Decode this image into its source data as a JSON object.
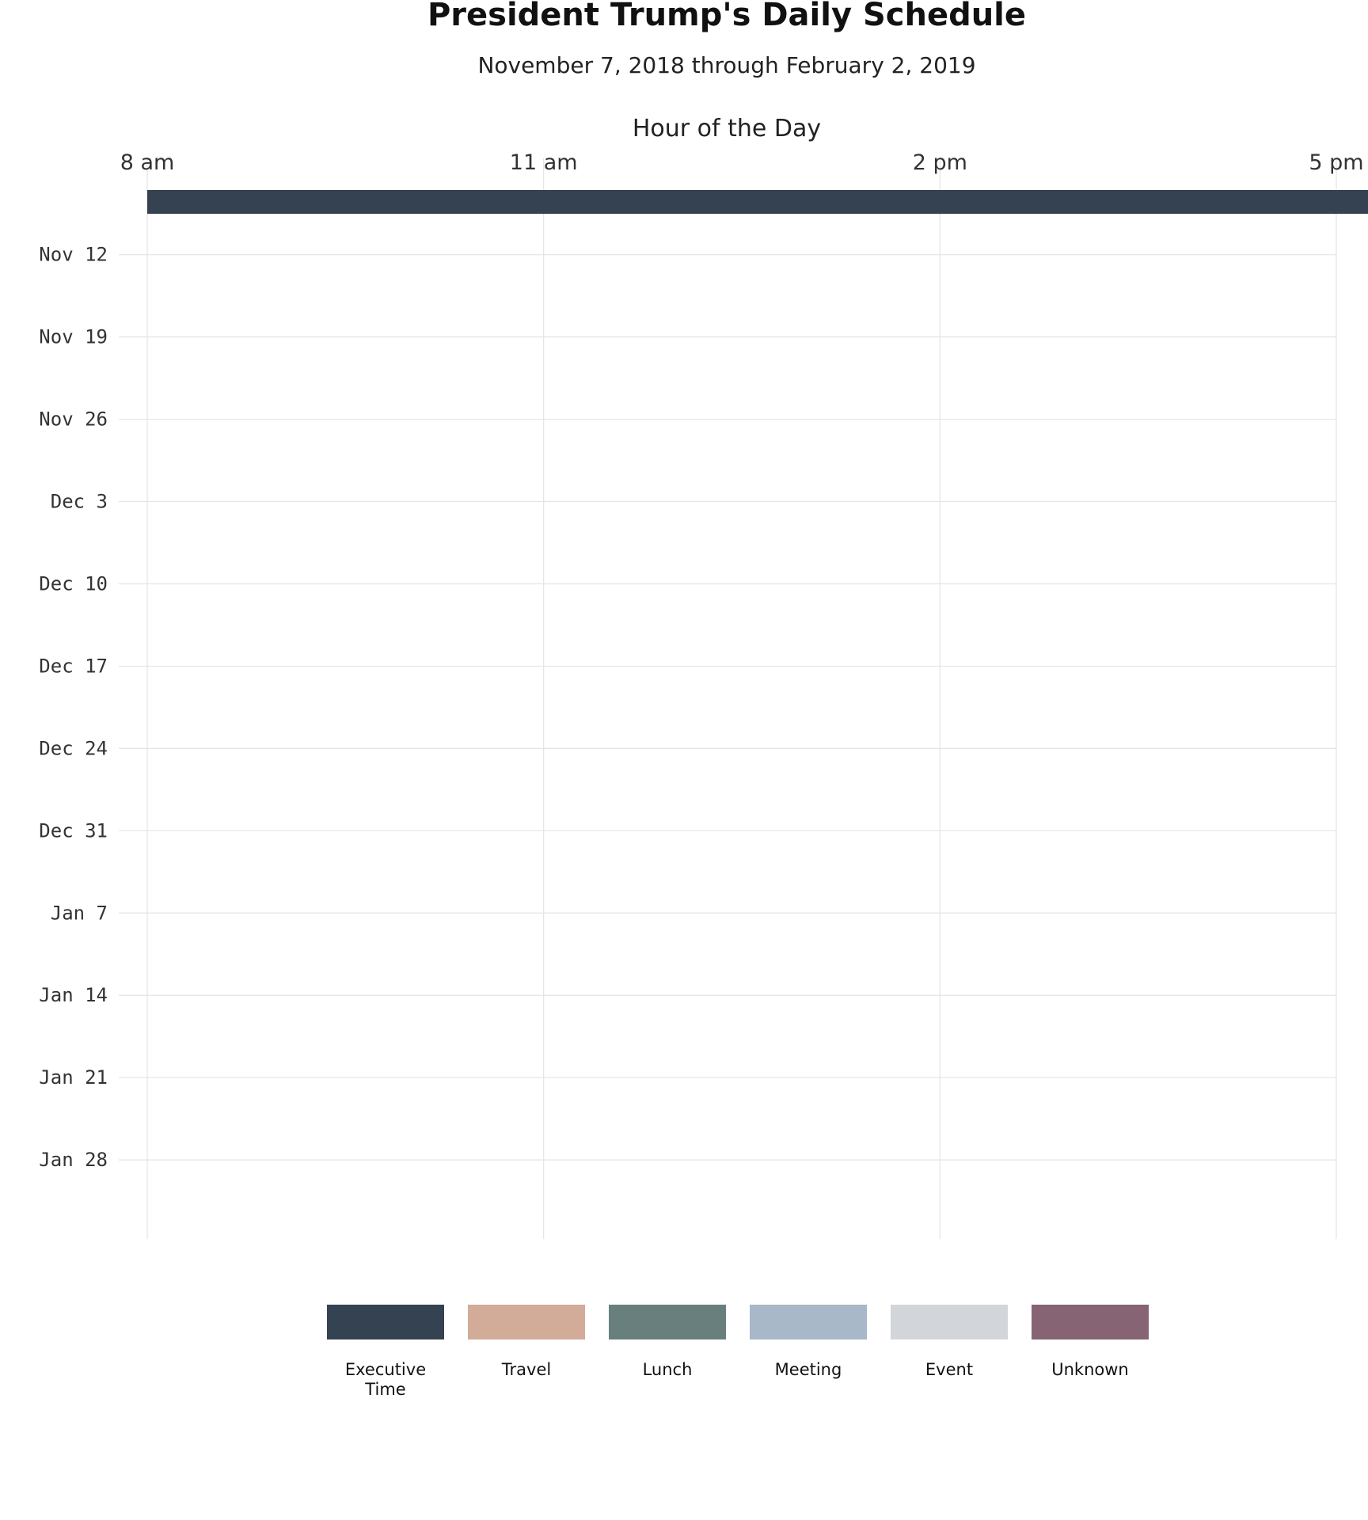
{
  "chart_data": {
    "type": "heatmap",
    "title": "President Trump's Daily Schedule",
    "subtitle": "November 7, 2018 through February 2, 2019",
    "xlabel": "Hour of the Day",
    "x_tick_labels": [
      "8 am",
      "11 am",
      "2 pm",
      "5 pm"
    ],
    "x_tick_values": [
      8,
      11,
      14,
      17
    ],
    "xlim": [
      8,
      17
    ],
    "slot_hours": 0.25,
    "y_tick_labels": [
      "Nov 12",
      "Nov 19",
      "Nov 26",
      "Dec  3",
      "Dec 10",
      "Dec 17",
      "Dec 24",
      "Dec 31",
      "Jan  7",
      "Jan 14",
      "Jan 21",
      "Jan 28"
    ],
    "y_tick_dates": [
      "2018-11-12",
      "2018-11-19",
      "2018-11-26",
      "2018-12-03",
      "2018-12-10",
      "2018-12-17",
      "2018-12-24",
      "2018-12-31",
      "2019-01-07",
      "2019-01-14",
      "2019-01-21",
      "2019-01-28"
    ],
    "ylim": [
      "2018-11-07",
      "2019-02-02"
    ],
    "grid": true,
    "legend_position": "bottom",
    "categories": [
      {
        "key": "E",
        "name": "Executive Time",
        "lines": [
          "Executive",
          "Time"
        ],
        "color": "#344252"
      },
      {
        "key": "T",
        "name": "Travel",
        "lines": [
          "Travel"
        ],
        "color": "#d2ab99"
      },
      {
        "key": "L",
        "name": "Lunch",
        "lines": [
          "Lunch"
        ],
        "color": "#697f7d"
      },
      {
        "key": "M",
        "name": "Meeting",
        "lines": [
          "Meeting"
        ],
        "color": "#a8b8c8"
      },
      {
        "key": "V",
        "name": "Event",
        "lines": [
          "Event"
        ],
        "color": "#d2d6da"
      },
      {
        "key": "U",
        "name": "Unknown",
        "lines": [
          "Unknown"
        ],
        "color": "#876474"
      }
    ],
    "days": [
      {
        "date": "2018-11-07",
        "slots": "EEEEEEEEEEEEEEEEEEEEEEEEEEEEEEEEEEEEEEEEEEEEEEEEEEEEEEEEEEEEEEEEEEEEEEEEEEEEEEEEEEEEEEEEEEEEEEEEEEEEEEEEEEEEEEEEEEEEEEEMMMMMMMMMMMMMMMMMMMMEEEEEEEEEEEEEEEEEEEEEEEEEEEEEEEEEEEEEEEEEEEEEEEEEEEEEEEEEEEEEEEEEEEEEEEEEEEEEEEEEEEEEEEEEEEEEEEEEEEEEEEEEEEEEEEEEEEEEEEEEEEEEEEEEEEEEEEEEEEEEEEEEEEEEEEEEEEEEEEEEEEEEEEEEEEEEEEEEEEEEEEEEEEEEEEEEEEEEEEEEEEEEEEEEEEEEEEEEEEEEEEEEEEEEEEEEEEEEEEEEEEEEEEEEEEEEEEEEEEEEEEEEEEEEEEEEEEEEEEEEEEEEEEEEEEEEEEEEEEEEEEEEEEEEEEEEEEEEEEEEEEEEEEEEEEEEEEEEEEEEEEEEEEEEEE"
      },
      {
        "date": "2018-11-08",
        "slots": "EEEEEEEEEEEEEEEEEEEEEEEEEEEEEEEEEEEEEEEEEEEEEEEEEEEEEEEEEEEEEEEEEEEEEEEEEEEEEEEEEEEEEEEEEEEEEEEEEEEEEEEEEEEEEEEEEEEEEEEEEEEEEEEEEEEEEEEEEEEEEEEEEEEEEEEEEEEEEEEEEEEEEEEEEEEEEEEEEEEEEEEEEEEEEEEEEEEEEEEEEEEEEEEEEEEEEEEEEEEEEEEEEEEEEEEEEEEEEEEEEEEEEEEEEEEEEEEEEEEEEEEEEEEEEEEEEEEEEEEEEEEEEEEEEEEEEEEEEEEEEEEEEEEEEEEEEEEEEEEEEEEEEEEEEEEEEEEEEEEEEEEEEEEEEEEEEEEEEEEEEEEEEEEEEEEEEEEEEEEEEEEEEEEEEEEEEEEEEEEEEEEEEEEEEEEEEEEEEEEEEEEEEEEEEEEEEEEEEEEEEEEEEEEEEEEEEEEEEEEEEEEEEEEEEEEEEEEEEEEEEEEEEEEEEEEEEEEE"
      }
    ]
  }
}
